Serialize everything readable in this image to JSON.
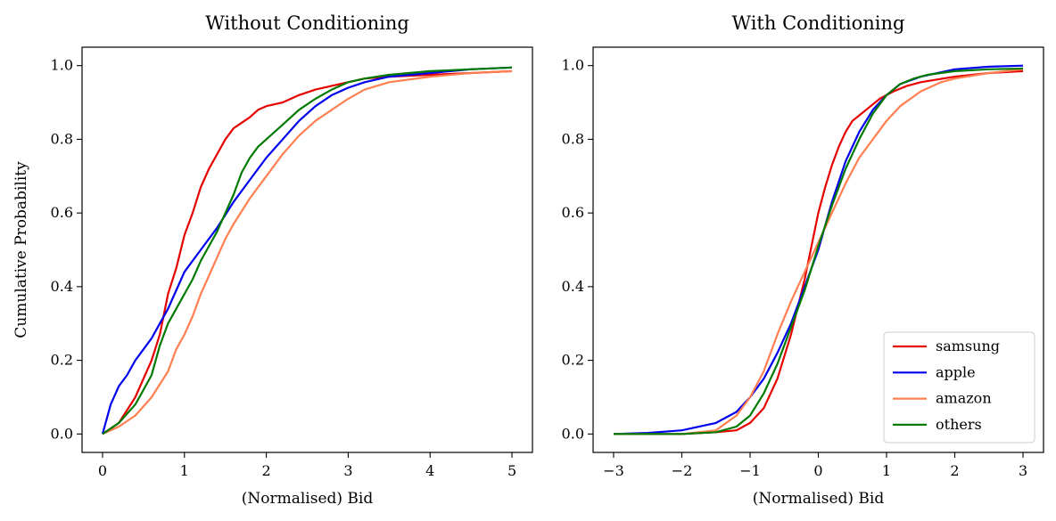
{
  "chart_data": [
    {
      "type": "line",
      "title": "Without Conditioning",
      "xlabel": "(Normalised) Bid",
      "ylabel": "Cumulative Probability",
      "xlim": [
        -0.25,
        5.25
      ],
      "ylim": [
        -0.05,
        1.05
      ],
      "xticks": [
        "0",
        "1",
        "2",
        "3",
        "4",
        "5"
      ],
      "yticks": [
        "0.0",
        "0.2",
        "0.4",
        "0.6",
        "0.8",
        "1.0"
      ],
      "grid": false,
      "series": [
        {
          "name": "samsung",
          "color": "#e60000",
          "x": [
            0,
            0.2,
            0.4,
            0.6,
            0.7,
            0.8,
            0.9,
            1.0,
            1.1,
            1.2,
            1.3,
            1.4,
            1.5,
            1.6,
            1.7,
            1.8,
            1.9,
            2.0,
            2.2,
            2.4,
            2.6,
            2.8,
            3.0,
            3.2,
            3.5,
            4.0,
            4.5,
            5.0
          ],
          "y": [
            0,
            0.03,
            0.1,
            0.2,
            0.27,
            0.38,
            0.45,
            0.54,
            0.6,
            0.67,
            0.72,
            0.76,
            0.8,
            0.83,
            0.845,
            0.86,
            0.88,
            0.89,
            0.9,
            0.92,
            0.935,
            0.945,
            0.955,
            0.965,
            0.97,
            0.975,
            0.98,
            0.985
          ]
        },
        {
          "name": "apple",
          "color": "#0000ee",
          "x": [
            0,
            0.1,
            0.2,
            0.3,
            0.4,
            0.5,
            0.6,
            0.7,
            0.8,
            0.9,
            1.0,
            1.2,
            1.4,
            1.6,
            1.8,
            2.0,
            2.2,
            2.4,
            2.6,
            2.8,
            3.0,
            3.2,
            3.5,
            4.0,
            4.5,
            5.0
          ],
          "y": [
            0,
            0.08,
            0.13,
            0.16,
            0.2,
            0.23,
            0.26,
            0.3,
            0.34,
            0.39,
            0.44,
            0.5,
            0.56,
            0.63,
            0.69,
            0.75,
            0.8,
            0.85,
            0.89,
            0.92,
            0.94,
            0.955,
            0.97,
            0.98,
            0.99,
            0.995
          ]
        },
        {
          "name": "amazon",
          "color": "#ff7f50",
          "x": [
            0,
            0.2,
            0.4,
            0.6,
            0.8,
            0.9,
            1.0,
            1.1,
            1.2,
            1.3,
            1.4,
            1.5,
            1.6,
            1.8,
            2.0,
            2.2,
            2.4,
            2.6,
            2.8,
            3.0,
            3.2,
            3.5,
            4.0,
            4.5,
            5.0
          ],
          "y": [
            0,
            0.02,
            0.05,
            0.1,
            0.17,
            0.23,
            0.27,
            0.32,
            0.38,
            0.43,
            0.48,
            0.53,
            0.57,
            0.64,
            0.7,
            0.76,
            0.81,
            0.85,
            0.88,
            0.91,
            0.935,
            0.955,
            0.97,
            0.98,
            0.985
          ]
        },
        {
          "name": "others",
          "color": "#007a00",
          "x": [
            0,
            0.2,
            0.4,
            0.5,
            0.6,
            0.7,
            0.8,
            0.9,
            1.0,
            1.1,
            1.2,
            1.3,
            1.4,
            1.5,
            1.6,
            1.7,
            1.8,
            1.9,
            2.0,
            2.2,
            2.4,
            2.6,
            2.8,
            3.0,
            3.2,
            3.5,
            4.0,
            4.5,
            5.0
          ],
          "y": [
            0,
            0.03,
            0.08,
            0.12,
            0.16,
            0.24,
            0.3,
            0.34,
            0.38,
            0.42,
            0.47,
            0.51,
            0.55,
            0.6,
            0.65,
            0.71,
            0.75,
            0.78,
            0.8,
            0.84,
            0.88,
            0.91,
            0.935,
            0.955,
            0.965,
            0.975,
            0.985,
            0.99,
            0.995
          ]
        }
      ]
    },
    {
      "type": "line",
      "title": "With Conditioning",
      "xlabel": "(Normalised) Bid",
      "ylabel": "",
      "xlim": [
        -3.3,
        3.3
      ],
      "ylim": [
        -0.05,
        1.05
      ],
      "xticks": [
        "−3",
        "−2",
        "−1",
        "0",
        "1",
        "2",
        "3"
      ],
      "yticks": [
        "0.0",
        "0.2",
        "0.4",
        "0.6",
        "0.8",
        "1.0"
      ],
      "grid": false,
      "legend": "lower-right",
      "series": [
        {
          "name": "samsung",
          "color": "#e60000",
          "x": [
            -3,
            -2,
            -1.5,
            -1.2,
            -1.0,
            -0.8,
            -0.6,
            -0.4,
            -0.2,
            0,
            0.1,
            0.2,
            0.3,
            0.4,
            0.5,
            0.7,
            0.9,
            1.1,
            1.3,
            1.5,
            2.0,
            2.5,
            3.0
          ],
          "y": [
            0,
            0,
            0.005,
            0.01,
            0.03,
            0.07,
            0.15,
            0.27,
            0.42,
            0.6,
            0.67,
            0.73,
            0.78,
            0.82,
            0.85,
            0.88,
            0.91,
            0.93,
            0.945,
            0.955,
            0.97,
            0.98,
            0.985
          ]
        },
        {
          "name": "apple",
          "color": "#0000ee",
          "x": [
            -3,
            -2.5,
            -2,
            -1.5,
            -1.2,
            -1.0,
            -0.8,
            -0.6,
            -0.4,
            -0.2,
            0,
            0.2,
            0.4,
            0.6,
            0.8,
            1.0,
            1.2,
            1.5,
            2.0,
            2.5,
            3.0
          ],
          "y": [
            0,
            0.003,
            0.01,
            0.03,
            0.06,
            0.1,
            0.15,
            0.22,
            0.3,
            0.4,
            0.5,
            0.63,
            0.74,
            0.82,
            0.88,
            0.92,
            0.95,
            0.97,
            0.99,
            0.997,
            1.0
          ]
        },
        {
          "name": "amazon",
          "color": "#ff7f50",
          "x": [
            -3,
            -2,
            -1.5,
            -1.2,
            -1.0,
            -0.8,
            -0.6,
            -0.4,
            -0.2,
            0,
            0.2,
            0.4,
            0.6,
            0.8,
            1.0,
            1.2,
            1.5,
            1.8,
            2.0,
            2.5,
            3.0
          ],
          "y": [
            0,
            0,
            0.01,
            0.05,
            0.1,
            0.17,
            0.27,
            0.36,
            0.44,
            0.52,
            0.6,
            0.68,
            0.75,
            0.8,
            0.85,
            0.89,
            0.93,
            0.955,
            0.965,
            0.98,
            0.99
          ]
        },
        {
          "name": "others",
          "color": "#007a00",
          "x": [
            -3,
            -2,
            -1.5,
            -1.2,
            -1.0,
            -0.8,
            -0.6,
            -0.4,
            -0.2,
            0,
            0.2,
            0.4,
            0.6,
            0.8,
            1.0,
            1.2,
            1.4,
            1.6,
            2.0,
            2.5,
            3.0
          ],
          "y": [
            0,
            0,
            0.005,
            0.02,
            0.05,
            0.11,
            0.19,
            0.29,
            0.39,
            0.51,
            0.62,
            0.72,
            0.8,
            0.87,
            0.92,
            0.95,
            0.965,
            0.975,
            0.985,
            0.99,
            0.992
          ]
        }
      ]
    }
  ]
}
